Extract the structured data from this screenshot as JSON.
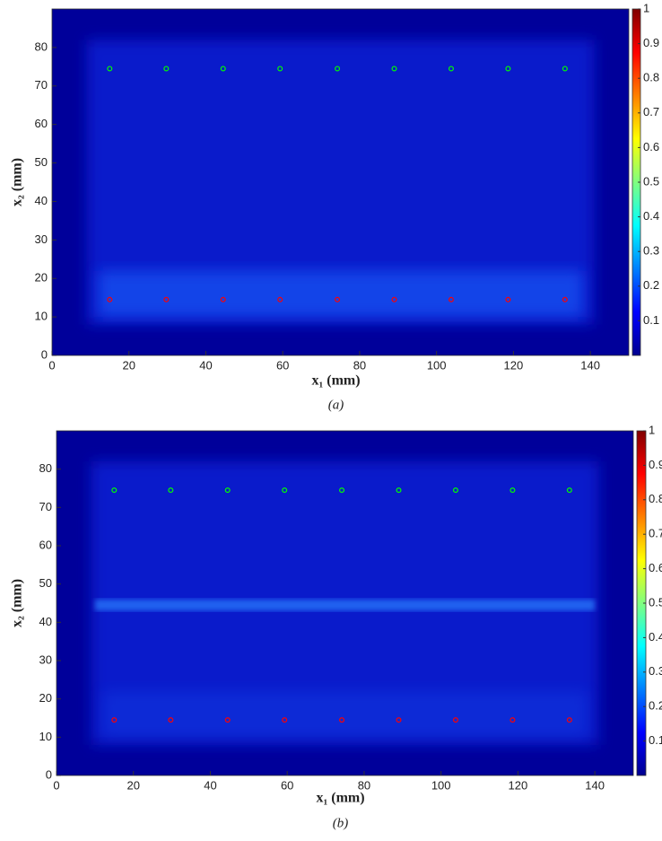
{
  "chart_data": [
    {
      "type": "heatmap",
      "caption": "(a)",
      "xlabel": "x₁ (mm)",
      "ylabel": "x₂ (mm)",
      "xlim": [
        0,
        150
      ],
      "xticks": [
        0,
        20,
        40,
        60,
        80,
        100,
        120,
        140
      ],
      "ylim": [
        0,
        90
      ],
      "yticks": [
        0,
        10,
        20,
        30,
        40,
        50,
        60,
        70,
        80
      ],
      "clim": [
        0,
        1
      ],
      "cticks": [
        0.1,
        0.2,
        0.3,
        0.4,
        0.5,
        0.6,
        0.7,
        0.8,
        0.9,
        1
      ],
      "series": [
        {
          "color": "#00ff00",
          "x": [
            15,
            29.7,
            44.5,
            59.3,
            74.2,
            89,
            103.8,
            118.6,
            133.4
          ],
          "values": [
            74.5,
            74.5,
            74.5,
            74.5,
            74.5,
            74.5,
            74.5,
            74.5,
            74.5
          ]
        },
        {
          "color": "#ff0000",
          "x": [
            15,
            29.7,
            44.5,
            59.3,
            74.2,
            89,
            103.8,
            118.6,
            133.4
          ],
          "values": [
            14.5,
            14.5,
            14.5,
            14.5,
            14.5,
            14.5,
            14.5,
            14.5,
            14.5
          ]
        }
      ]
    },
    {
      "type": "heatmap",
      "caption": "(b)",
      "xlabel": "x₁ (mm)",
      "ylabel": "x₂ (mm)",
      "xlim": [
        0,
        150
      ],
      "xticks": [
        0,
        20,
        40,
        60,
        80,
        100,
        120,
        140
      ],
      "ylim": [
        0,
        90
      ],
      "yticks": [
        0,
        10,
        20,
        30,
        40,
        50,
        60,
        70,
        80
      ],
      "clim": [
        0,
        1
      ],
      "cticks": [
        0.1,
        0.2,
        0.3,
        0.4,
        0.5,
        0.6,
        0.7,
        0.8,
        0.9,
        1
      ],
      "series": [
        {
          "color": "#00ff00",
          "x": [
            15,
            29.7,
            44.5,
            59.3,
            74.2,
            89,
            103.8,
            118.6,
            133.4
          ],
          "values": [
            74.5,
            74.5,
            74.5,
            74.5,
            74.5,
            74.5,
            74.5,
            74.5,
            74.5
          ]
        },
        {
          "color": "#ff0000",
          "x": [
            15,
            29.7,
            44.5,
            59.3,
            74.2,
            89,
            103.8,
            118.6,
            133.4
          ],
          "values": [
            14.5,
            14.5,
            14.5,
            14.5,
            14.5,
            14.5,
            14.5,
            14.5,
            14.5
          ]
        }
      ]
    }
  ]
}
